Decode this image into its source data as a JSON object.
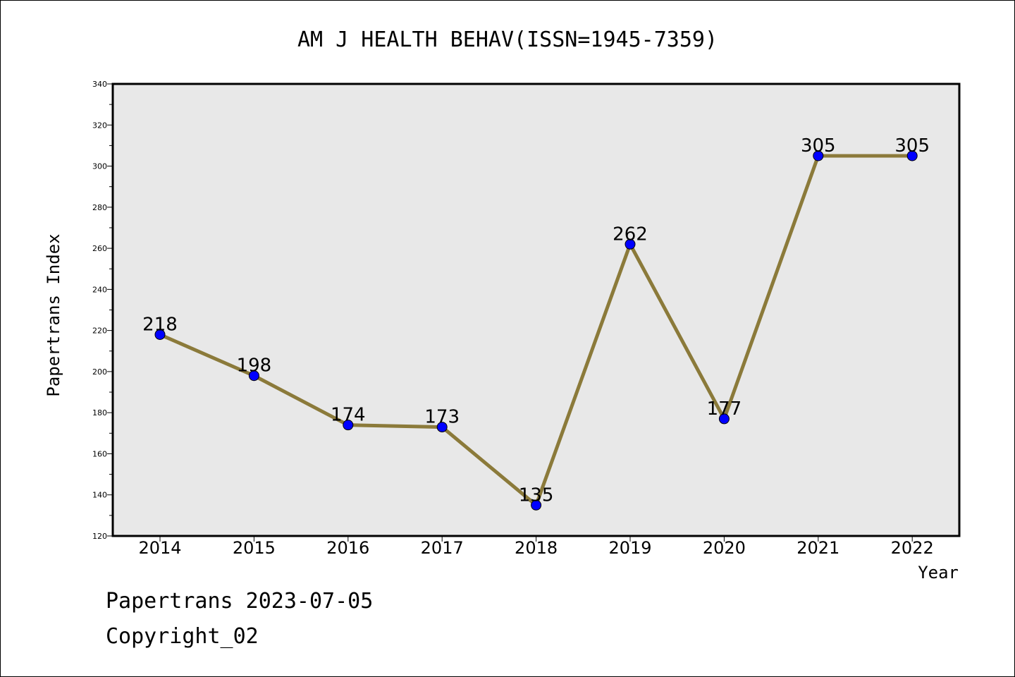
{
  "chart_data": {
    "type": "line",
    "title": "AM J HEALTH BEHAV(ISSN=1945-7359)",
    "xlabel": "Year",
    "ylabel": "Papertrans Index",
    "categories": [
      "2014",
      "2015",
      "2016",
      "2017",
      "2018",
      "2019",
      "2020",
      "2021",
      "2022"
    ],
    "series": [
      {
        "values": [
          218,
          198,
          174,
          173,
          135,
          262,
          177,
          305,
          305
        ],
        "line_color": "#8b7a3a",
        "marker_color": "#0000ff"
      }
    ],
    "data_labels": [
      "218",
      "198",
      "174",
      "173",
      "135",
      "262",
      "177",
      "305",
      "305"
    ],
    "ylim": [
      120,
      340
    ],
    "y_ticks": [
      120,
      140,
      160,
      180,
      200,
      220,
      240,
      260,
      280,
      300,
      320,
      340
    ],
    "y_tick_labels": [
      "120",
      "140",
      "160",
      "180",
      "200",
      "220",
      "240",
      "260",
      "280",
      "300",
      "320",
      "340"
    ],
    "plot_background": "#e8e8e8",
    "grid": false,
    "legend": "none"
  },
  "footer": {
    "line1": "Papertrans 2023-07-05",
    "line2": "Copyright_02"
  }
}
